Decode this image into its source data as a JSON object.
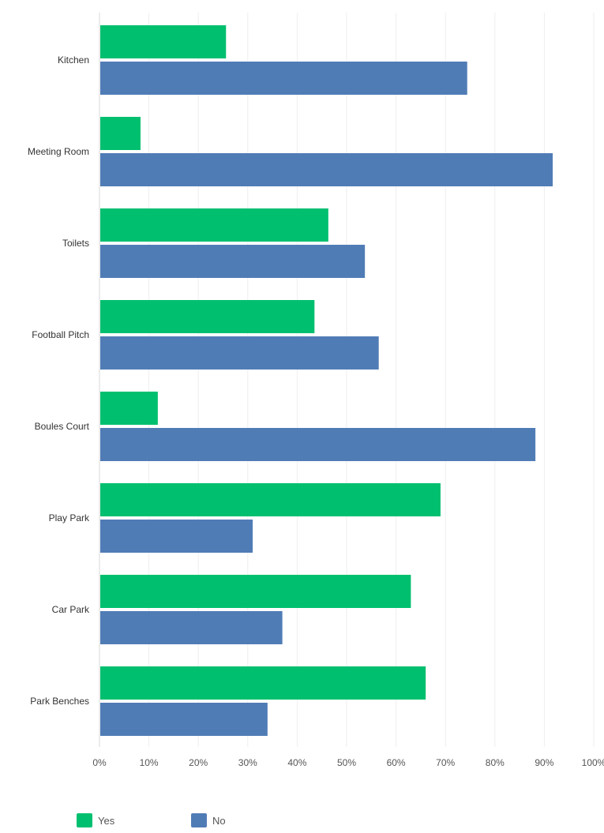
{
  "chart_data": {
    "type": "bar",
    "orientation": "horizontal",
    "categories": [
      "Kitchen",
      "Meeting Room",
      "Toilets",
      "Football Pitch",
      "Boules Court",
      "Play Park",
      "Car Park",
      "Park Benches"
    ],
    "series": [
      {
        "name": "Yes",
        "color": "#00bf6f",
        "values": [
          25.6,
          8.3,
          46.3,
          43.5,
          11.8,
          69.0,
          63.0,
          66.0
        ]
      },
      {
        "name": "No",
        "color": "#507cb6",
        "values": [
          74.4,
          91.7,
          53.7,
          56.5,
          88.2,
          31.0,
          37.0,
          34.0
        ]
      }
    ],
    "x_ticks": [
      "0%",
      "10%",
      "20%",
      "30%",
      "40%",
      "50%",
      "60%",
      "70%",
      "80%",
      "90%",
      "100%"
    ],
    "xlim": [
      0,
      100
    ],
    "grid": "vertical",
    "legend_position": "bottom-left"
  }
}
